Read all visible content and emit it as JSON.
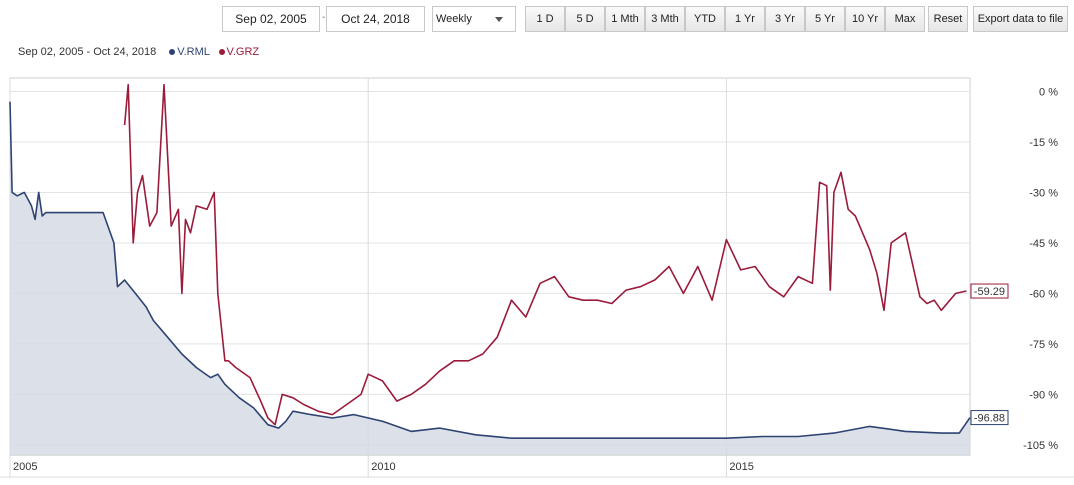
{
  "toolbar": {
    "start_date": "Sep 02, 2005",
    "end_date": "Oct 24, 2018",
    "separator": "-",
    "frequency": "Weekly",
    "ranges": [
      "1 D",
      "5 D",
      "1 Mth",
      "3 Mth",
      "YTD",
      "1 Yr",
      "3 Yr",
      "5 Yr",
      "10 Yr",
      "Max"
    ],
    "reset_label": "Reset",
    "export_label": "Export data to file"
  },
  "legend": {
    "range_text": "Sep 02, 2005 - Oct 24, 2018",
    "series": [
      {
        "name": "V.RML",
        "color": "#2e4372"
      },
      {
        "name": "V.GRZ",
        "color": "#9b1b3b"
      }
    ]
  },
  "chart_data": {
    "type": "line",
    "x_ticks": [
      "2005",
      "2010",
      "2015"
    ],
    "y_ticks": [
      "0 %",
      "-15 %",
      "-30 %",
      "-45 %",
      "-60 %",
      "-75 %",
      "-90 %",
      "-105 %"
    ],
    "ylim": [
      -108,
      4
    ],
    "xlim": [
      2005.0,
      2018.4
    ],
    "grid": true,
    "series": [
      {
        "name": "V.RML",
        "color": "#2e4372",
        "fill": "#d5dbe5",
        "last_label": "-96.88",
        "x": [
          2005.0,
          2005.03,
          2005.1,
          2005.2,
          2005.3,
          2005.35,
          2005.4,
          2005.45,
          2005.5,
          2005.6,
          2005.75,
          2005.85,
          2005.9,
          2006.0,
          2006.15,
          2006.3,
          2006.45,
          2006.5,
          2006.6,
          2006.75,
          2006.9,
          2007.0,
          2007.2,
          2007.4,
          2007.6,
          2007.8,
          2007.9,
          2008.0,
          2008.2,
          2008.4,
          2008.6,
          2008.75,
          2008.85,
          2008.95,
          2009.2,
          2009.5,
          2009.8,
          2010.2,
          2010.6,
          2011.0,
          2011.5,
          2012.0,
          2012.5,
          2013.0,
          2013.5,
          2014.0,
          2014.5,
          2015.0,
          2015.5,
          2016.0,
          2016.5,
          2017.0,
          2017.5,
          2018.0,
          2018.25,
          2018.4
        ],
        "values": [
          -3,
          -30,
          -31,
          -30,
          -34,
          -38,
          -30,
          -37,
          -36,
          -36,
          -36,
          -36,
          -36,
          -36,
          -36,
          -36,
          -45,
          -58,
          -56,
          -60,
          -64,
          -68,
          -73,
          -78,
          -82,
          -85,
          -84,
          -87,
          -91,
          -94,
          -99,
          -100,
          -98,
          -95,
          -96,
          -97,
          -96,
          -98,
          -101,
          -100,
          -102,
          -103,
          -103,
          -103,
          -103,
          -103,
          -103,
          -103,
          -102.5,
          -102.5,
          -101.5,
          -99.5,
          -101,
          -101.5,
          -101.5,
          -96.88
        ]
      },
      {
        "name": "V.GRZ",
        "color": "#9b1b3b",
        "last_label": "-59.29",
        "x": [
          2006.6,
          2006.65,
          2006.72,
          2006.78,
          2006.85,
          2006.95,
          2007.05,
          2007.15,
          2007.25,
          2007.35,
          2007.4,
          2007.45,
          2007.52,
          2007.6,
          2007.75,
          2007.85,
          2007.9,
          2008.0,
          2008.05,
          2008.15,
          2008.35,
          2008.5,
          2008.6,
          2008.7,
          2008.8,
          2008.95,
          2009.1,
          2009.3,
          2009.5,
          2009.7,
          2009.9,
          2010.0,
          2010.2,
          2010.4,
          2010.6,
          2010.8,
          2011.0,
          2011.2,
          2011.4,
          2011.6,
          2011.8,
          2012.0,
          2012.2,
          2012.4,
          2012.6,
          2012.8,
          2013.0,
          2013.2,
          2013.4,
          2013.6,
          2013.8,
          2014.0,
          2014.2,
          2014.4,
          2014.6,
          2014.8,
          2015.0,
          2015.2,
          2015.4,
          2015.6,
          2015.8,
          2016.0,
          2016.2,
          2016.3,
          2016.4,
          2016.45,
          2016.5,
          2016.6,
          2016.7,
          2016.8,
          2017.0,
          2017.1,
          2017.2,
          2017.3,
          2017.5,
          2017.7,
          2017.8,
          2017.9,
          2018.0,
          2018.2,
          2018.35
        ],
        "values": [
          -10,
          2,
          -45,
          -30,
          -25,
          -40,
          -36,
          2,
          -40,
          -35,
          -60,
          -38,
          -42,
          -34,
          -35,
          -30,
          -60,
          -80,
          -80,
          -82,
          -85,
          -92,
          -97,
          -99,
          -90,
          -91,
          -93,
          -95,
          -96,
          -93,
          -90,
          -84,
          -86,
          -92,
          -90,
          -87,
          -83,
          -80,
          -80,
          -78,
          -73,
          -62,
          -67,
          -57,
          -55,
          -61,
          -62,
          -62,
          -63,
          -59,
          -58,
          -56,
          -52,
          -60,
          -52,
          -62,
          -44,
          -53,
          -52,
          -58,
          -61,
          -55,
          -57,
          -27,
          -28,
          -59,
          -30,
          -24,
          -35,
          -37,
          -47,
          -54,
          -65,
          -45,
          -42,
          -61,
          -63,
          -62,
          -65,
          -60,
          -59.29
        ]
      }
    ]
  }
}
